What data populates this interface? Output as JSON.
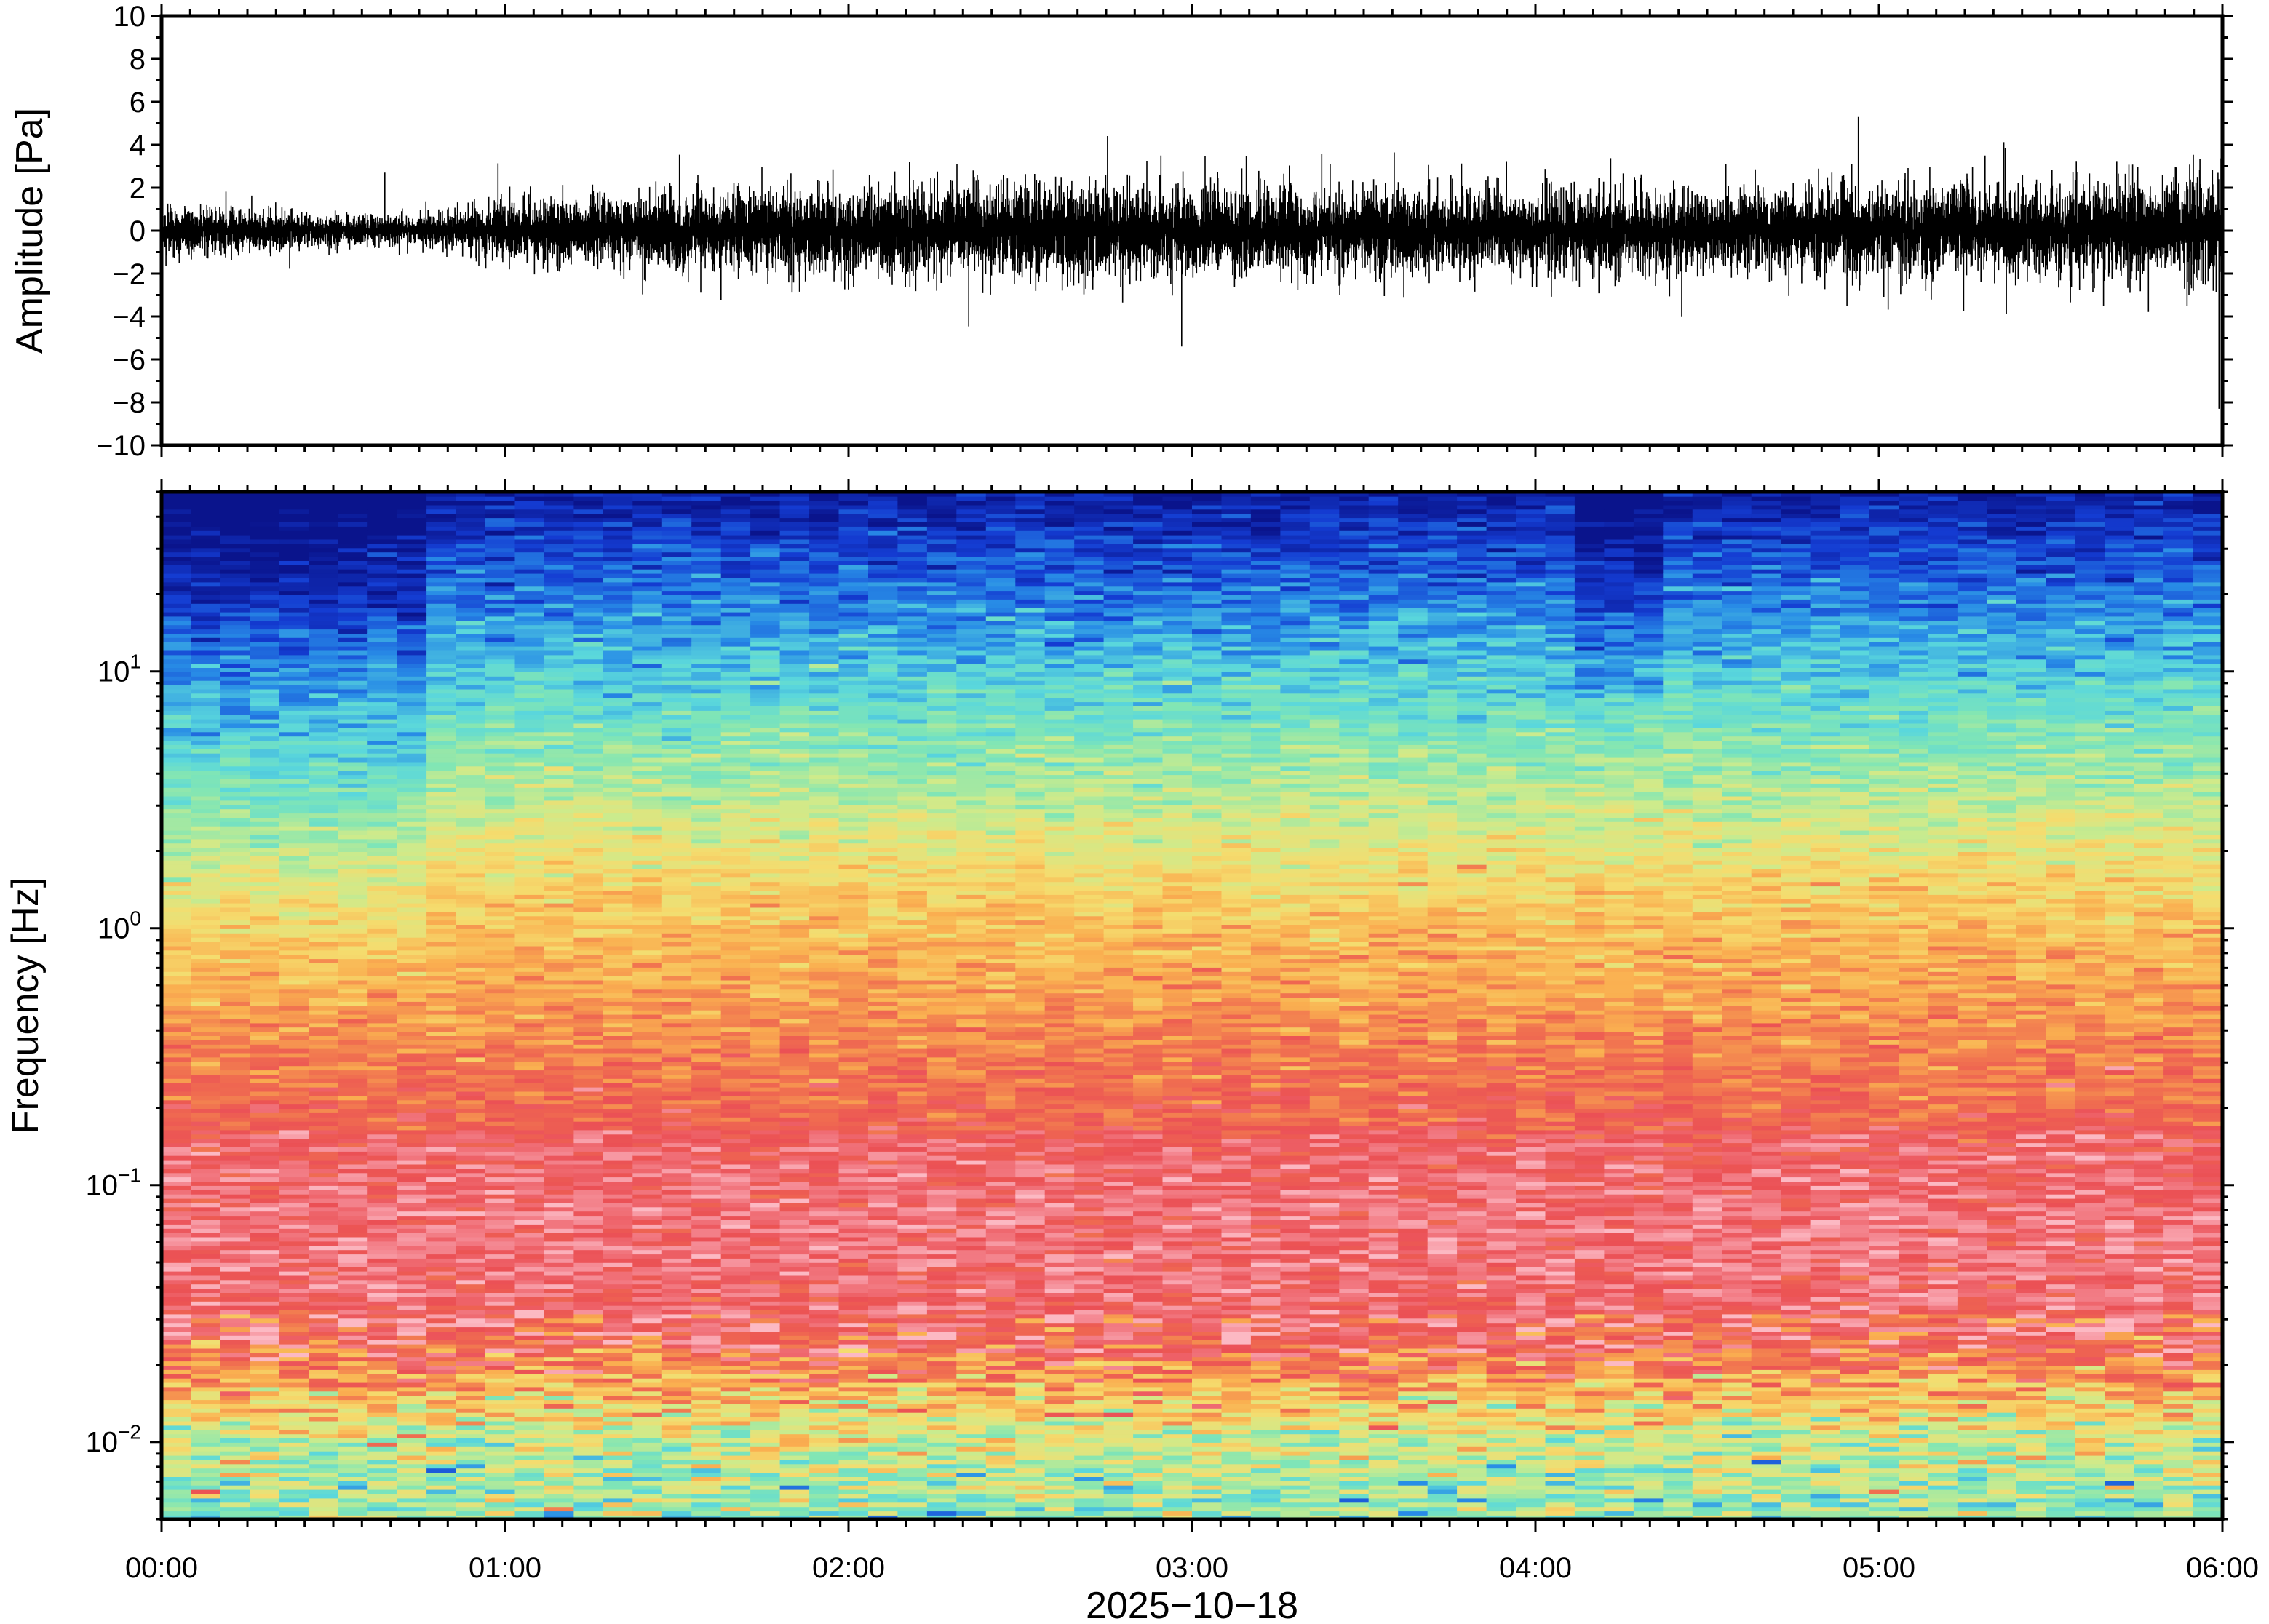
{
  "chart_data": [
    {
      "type": "line",
      "panel": "waveform",
      "ylabel": "Amplitude [Pa]",
      "ylim": [
        -10,
        10
      ],
      "yticks": [
        "10",
        "8",
        "6",
        "4",
        "2",
        "0",
        "−2",
        "−4",
        "−6",
        "−8",
        "−10"
      ],
      "xlim": [
        "00:00",
        "06:00"
      ],
      "series": [
        {
          "color": "#000000",
          "envelope_x_hours": [
            0.0,
            0.25,
            0.5,
            0.75,
            1.0,
            1.25,
            1.5,
            1.75,
            2.0,
            2.25,
            2.5,
            2.75,
            3.0,
            3.25,
            3.5,
            3.75,
            4.0,
            4.25,
            4.5,
            4.75,
            5.0,
            5.25,
            5.5,
            5.75,
            6.0
          ],
          "envelope_amplitude": [
            1.5,
            1.2,
            0.9,
            0.8,
            1.6,
            2.0,
            2.0,
            2.3,
            2.4,
            2.4,
            2.6,
            2.6,
            2.5,
            2.4,
            2.4,
            2.4,
            2.3,
            2.3,
            2.2,
            2.4,
            2.6,
            2.5,
            2.6,
            2.7,
            2.9
          ],
          "max_amplitude": 5.3,
          "min_amplitude": -8.3
        }
      ]
    },
    {
      "type": "heatmap",
      "panel": "spectrogram",
      "ylabel": "Frequency [Hz]",
      "yscale": "log",
      "ylim": [
        0.005,
        50
      ],
      "yticks": [
        {
          "base": "10",
          "exp": "1",
          "value": 10
        },
        {
          "base": "10",
          "exp": "0",
          "value": 1
        },
        {
          "base": "10",
          "exp": "−1",
          "value": 0.1
        },
        {
          "base": "10",
          "exp": "−2",
          "value": 0.01
        }
      ],
      "xlabel": "2025−10−18",
      "xticks": [
        "00:00",
        "01:00",
        "02:00",
        "03:00",
        "04:00",
        "05:00",
        "06:00"
      ],
      "xlim_hours": [
        0,
        6
      ],
      "colormap": "jet-like (blue low, red high, pink highest)",
      "colorbar": false
    }
  ]
}
